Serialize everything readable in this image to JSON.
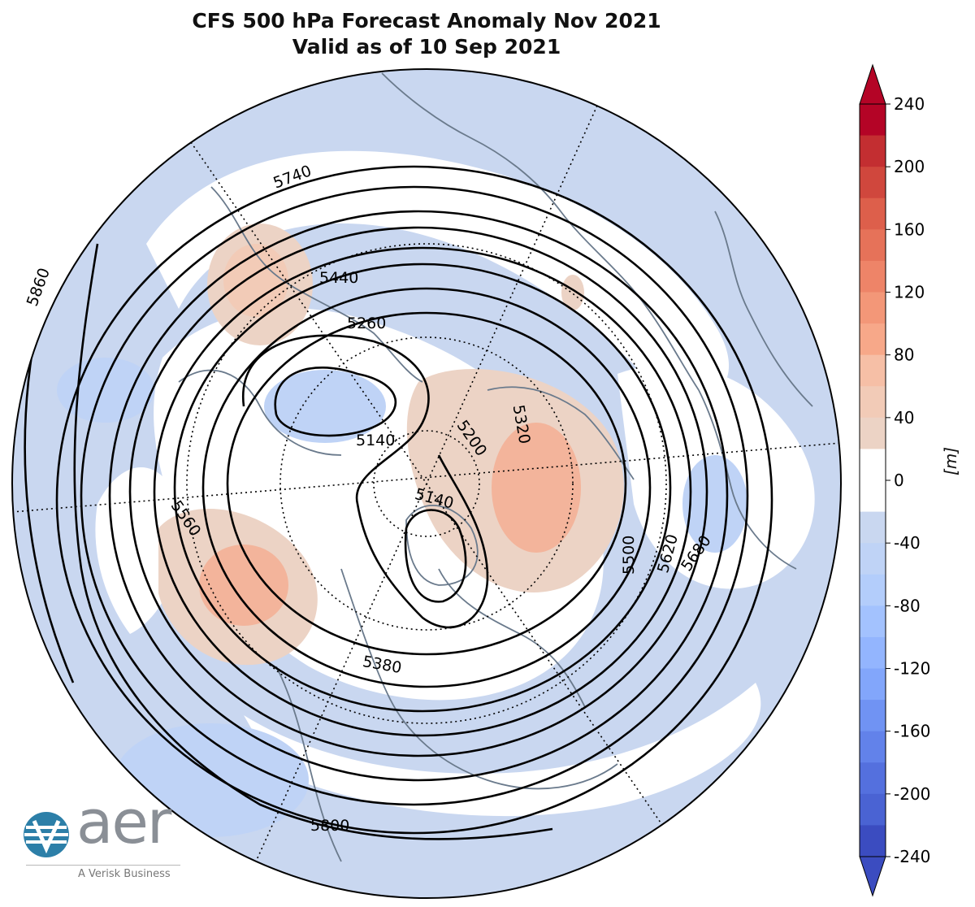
{
  "title": {
    "line1": "CFS 500 hPa Forecast Anomaly Nov 2021",
    "line2": "Valid as of 10 Sep 2021"
  },
  "colorbar": {
    "unit": "[m]",
    "ticks": [
      "240",
      "200",
      "160",
      "120",
      "80",
      "40",
      "0",
      "-40",
      "-80",
      "-120",
      "-160",
      "-200",
      "-240"
    ],
    "levels": [
      240,
      220,
      200,
      180,
      160,
      140,
      120,
      100,
      80,
      60,
      40,
      20,
      0,
      -20,
      -40,
      -60,
      -80,
      -100,
      -120,
      -140,
      -160,
      -180,
      -200,
      -220,
      -240
    ],
    "colors": {
      "pos": [
        "#b40426",
        "#c32e31",
        "#d0473d",
        "#dd5f4b",
        "#e67259",
        "#ee8468",
        "#f39778",
        "#f7a889",
        "#f6bfa6",
        "#f2cbb7",
        "#ecd3c5"
      ],
      "zero": "#ffffff",
      "neg": [
        "#c9d7f0",
        "#bfd3f6",
        "#b3cdfb",
        "#a3c2fe",
        "#93b5fe",
        "#82a6fb",
        "#7093f3",
        "#6282ea",
        "#5470de",
        "#4a63d3",
        "#3b4cc0"
      ]
    }
  },
  "contour_labels": [
    "5740",
    "5440",
    "5260",
    "5140",
    "5200",
    "5320",
    "5140",
    "5560",
    "5500",
    "5620",
    "5680",
    "5380",
    "5800",
    "5860"
  ],
  "logo": {
    "word": "aer",
    "tagline": "A Verisk Business"
  },
  "map_colors": {
    "neg_light": "#c9d7f0",
    "neg_mid": "#b3cdfb",
    "pos_light": "#ecd3c5",
    "pos_mid": "#f2cbb7",
    "pos_strong": "#f3b49b",
    "coast": "#6a7a8c",
    "contour": "#000000"
  }
}
